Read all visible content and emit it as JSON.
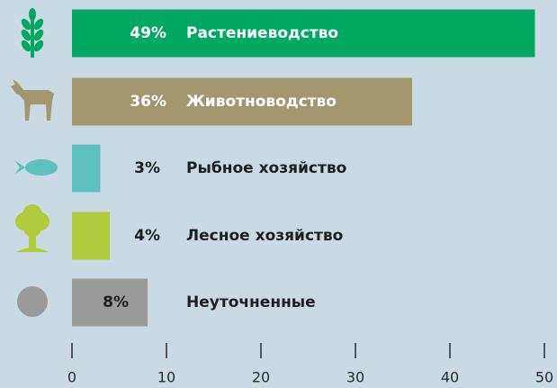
{
  "chart_data": {
    "type": "bar",
    "orientation": "horizontal",
    "categories": [
      "Растениеводство",
      "Животноводство",
      "Рыбное хозяйство",
      "Лесное хозяйство",
      "Неуточненные"
    ],
    "values": [
      49,
      36,
      3,
      4,
      8
    ],
    "value_labels": [
      "49%",
      "36%",
      "3%",
      "4%",
      "8%"
    ],
    "colors": [
      "#00a862",
      "#a39770",
      "#5cc1bf",
      "#b1cb3c",
      "#9b9b9b"
    ],
    "xlim": [
      0,
      50
    ],
    "xticks": [
      0,
      10,
      20,
      30,
      40,
      50
    ]
  }
}
